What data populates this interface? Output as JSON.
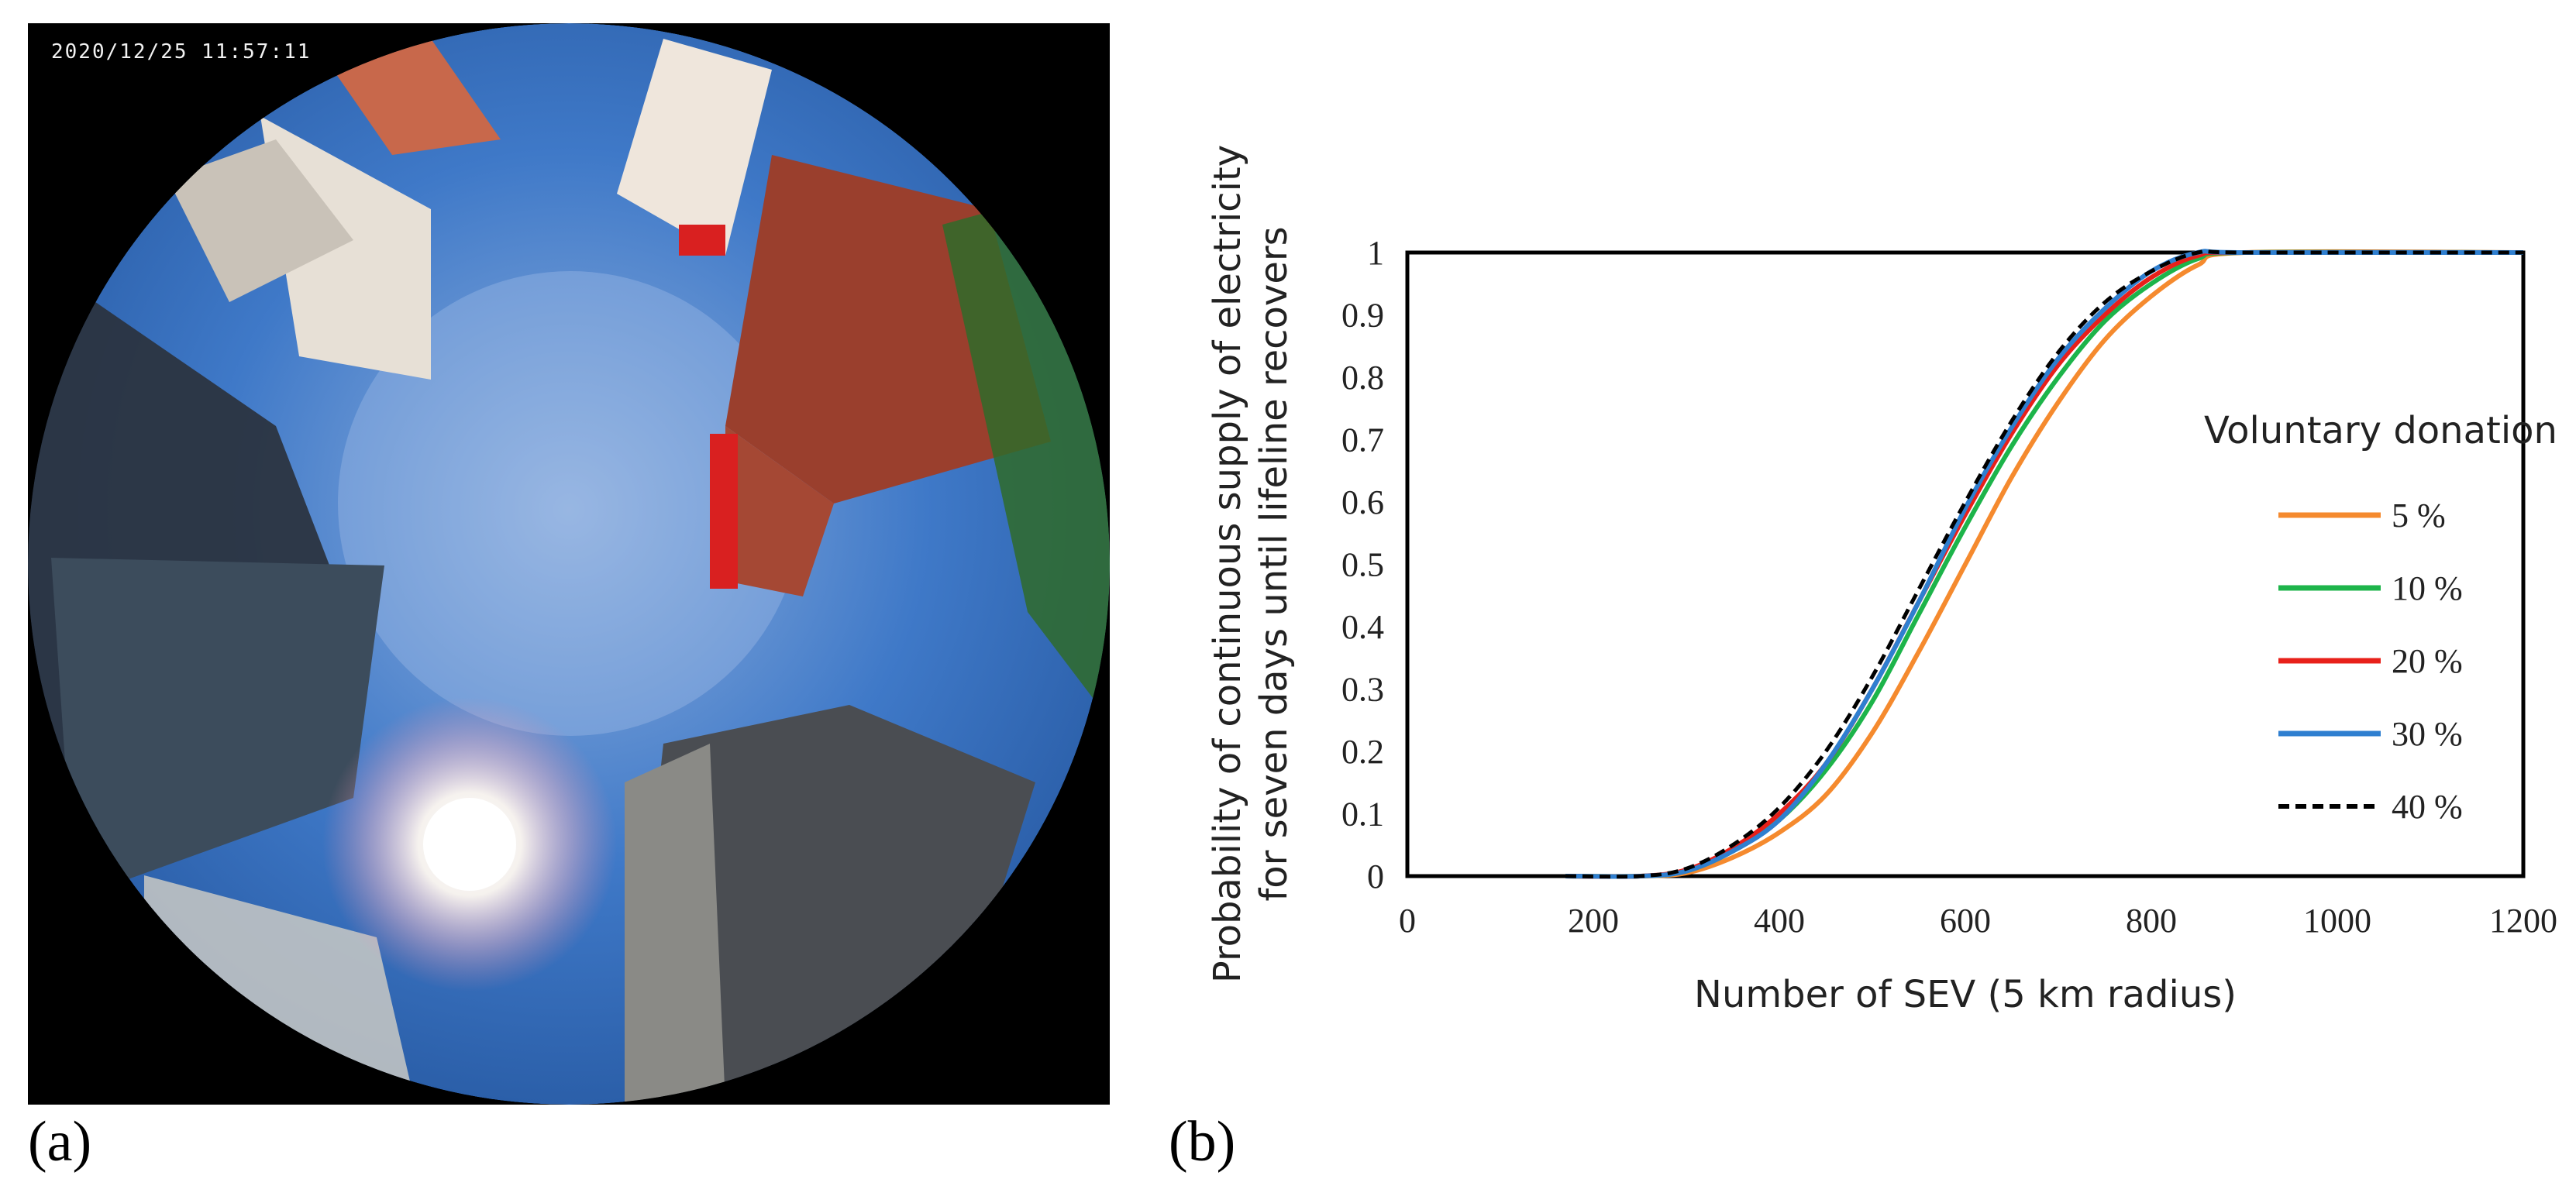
{
  "panel_a": {
    "label": "(a)",
    "timestamp": "2020/12/25 11:57:11"
  },
  "panel_b": {
    "label": "(b)"
  },
  "chart_data": {
    "type": "line",
    "title": "",
    "xlabel": "Number of SEV (5 km radius)",
    "ylabel_lines": [
      "Probability of continuous supply of electricity",
      "for seven days until lifeline recovers"
    ],
    "xlim": [
      0,
      1200
    ],
    "ylim": [
      0,
      1
    ],
    "x_ticks": [
      "0",
      "200",
      "400",
      "600",
      "800",
      "1000",
      "1200"
    ],
    "y_ticks": [
      "0",
      "0.1",
      "0.2",
      "0.3",
      "0.4",
      "0.5",
      "0.6",
      "0.7",
      "0.8",
      "0.9",
      "1"
    ],
    "grid": false,
    "legend": {
      "title": "Voluntary donation",
      "placement": "right"
    },
    "series": [
      {
        "name": "5 %",
        "color": "#f58a2e",
        "dash": false,
        "x": [
          170,
          250,
          300,
          350,
          400,
          450,
          500,
          550,
          600,
          650,
          700,
          750,
          800,
          850,
          900,
          1200
        ],
        "y": [
          0,
          0,
          0.005,
          0.03,
          0.07,
          0.13,
          0.23,
          0.36,
          0.5,
          0.64,
          0.76,
          0.86,
          0.93,
          0.98,
          1.0,
          1.0
        ]
      },
      {
        "name": "10 %",
        "color": "#1db44a",
        "dash": false,
        "x": [
          170,
          250,
          300,
          350,
          400,
          450,
          500,
          550,
          600,
          650,
          700,
          750,
          800,
          850,
          900,
          1200
        ],
        "y": [
          0,
          0,
          0.008,
          0.04,
          0.09,
          0.17,
          0.28,
          0.42,
          0.56,
          0.69,
          0.8,
          0.89,
          0.95,
          0.99,
          1.0,
          1.0
        ]
      },
      {
        "name": "20 %",
        "color": "#e8201a",
        "dash": false,
        "x": [
          170,
          250,
          300,
          350,
          400,
          450,
          500,
          550,
          600,
          650,
          700,
          750,
          800,
          850,
          900,
          1200
        ],
        "y": [
          0,
          0,
          0.01,
          0.045,
          0.1,
          0.18,
          0.3,
          0.44,
          0.58,
          0.71,
          0.82,
          0.9,
          0.96,
          0.995,
          1.0,
          1.0
        ]
      },
      {
        "name": "30 %",
        "color": "#2f7fd0",
        "dash": false,
        "x": [
          170,
          250,
          300,
          350,
          400,
          450,
          500,
          550,
          600,
          650,
          700,
          750,
          800,
          850,
          900,
          1200
        ],
        "y": [
          0,
          0,
          0.008,
          0.04,
          0.09,
          0.18,
          0.3,
          0.44,
          0.59,
          0.72,
          0.83,
          0.91,
          0.97,
          1.0,
          1.0,
          1.0
        ]
      },
      {
        "name": "40 %",
        "color": "#000000",
        "dash": true,
        "x": [
          170,
          250,
          300,
          350,
          400,
          450,
          500,
          550,
          600,
          650,
          700,
          750,
          800,
          850,
          900,
          1200
        ],
        "y": [
          0,
          0,
          0.012,
          0.05,
          0.11,
          0.2,
          0.32,
          0.46,
          0.6,
          0.73,
          0.84,
          0.92,
          0.97,
          1.0,
          1.0,
          1.0
        ]
      }
    ]
  }
}
